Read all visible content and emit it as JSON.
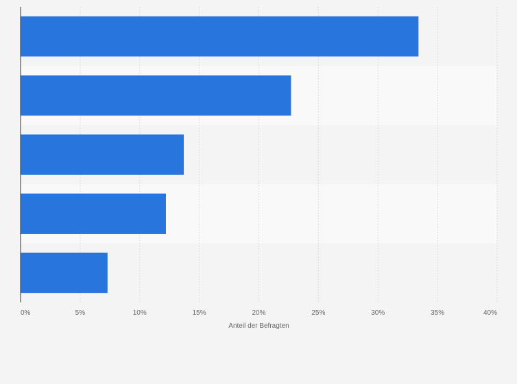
{
  "chart_data": {
    "type": "bar",
    "orientation": "horizontal",
    "categories": [
      "",
      "",
      "",
      "",
      ""
    ],
    "values": [
      33.4,
      22.7,
      13.7,
      12.2,
      7.3
    ],
    "xlabel": "Anteil der Befragten",
    "ylabel": "",
    "xlim": [
      0,
      40
    ],
    "x_ticks": [
      {
        "value": 0,
        "label": "0%"
      },
      {
        "value": 5,
        "label": "5%"
      },
      {
        "value": 10,
        "label": "10%"
      },
      {
        "value": 15,
        "label": "15%"
      },
      {
        "value": 20,
        "label": "20%"
      },
      {
        "value": 25,
        "label": "25%"
      },
      {
        "value": 30,
        "label": "30%"
      },
      {
        "value": 35,
        "label": "35%"
      },
      {
        "value": 40,
        "label": "40%"
      }
    ],
    "grid": true,
    "legend": "none",
    "colors": {
      "bar": "#2876dd",
      "band_light": "#f9f9f9",
      "band_dark": "#f4f4f4",
      "grid": "#dcdcdc",
      "axis": "#333333",
      "text": "#666666"
    }
  }
}
